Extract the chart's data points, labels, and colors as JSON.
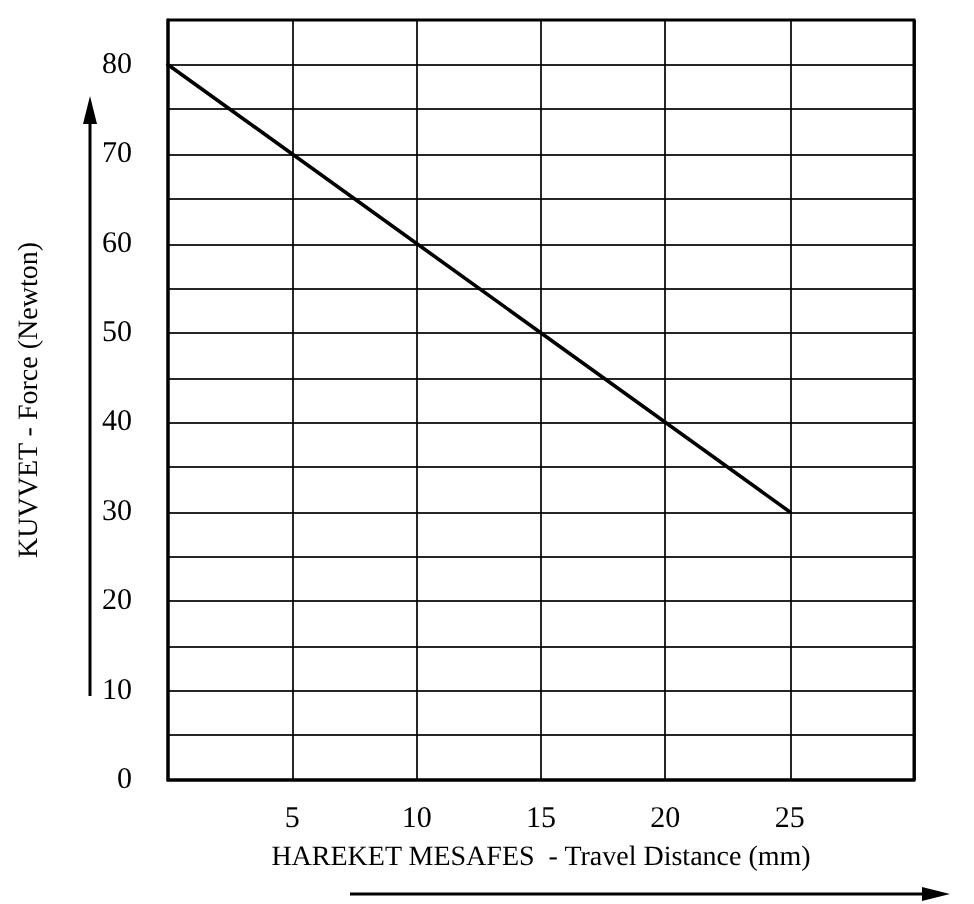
{
  "chart_data": {
    "type": "line",
    "xlabel": "HAREKET MESAFES  - Travel Distance (mm)",
    "ylabel": "KUVVET - Force (Newton)",
    "x": [
      0,
      25
    ],
    "series": [
      {
        "color": "#000000",
        "values": [
          80,
          30
        ]
      }
    ],
    "xlim": [
      0,
      30
    ],
    "xticks": [
      {
        "value": 0,
        "label": null
      },
      5,
      10,
      15,
      20,
      25,
      {
        "value": 30,
        "label": null
      }
    ],
    "ylim": [
      0,
      85
    ],
    "yticks": [
      0,
      {
        "value": 5,
        "label": null
      },
      10,
      {
        "value": 15,
        "label": null
      },
      20,
      {
        "value": 25,
        "label": null
      },
      30,
      {
        "value": 35,
        "label": null
      },
      40,
      {
        "value": 45,
        "label": null
      },
      50,
      {
        "value": 55,
        "label": null
      },
      60,
      {
        "value": 65,
        "label": null
      },
      70,
      {
        "value": 75,
        "label": null
      },
      80
    ],
    "grid": true,
    "marker": "none",
    "line_style": "solid"
  }
}
